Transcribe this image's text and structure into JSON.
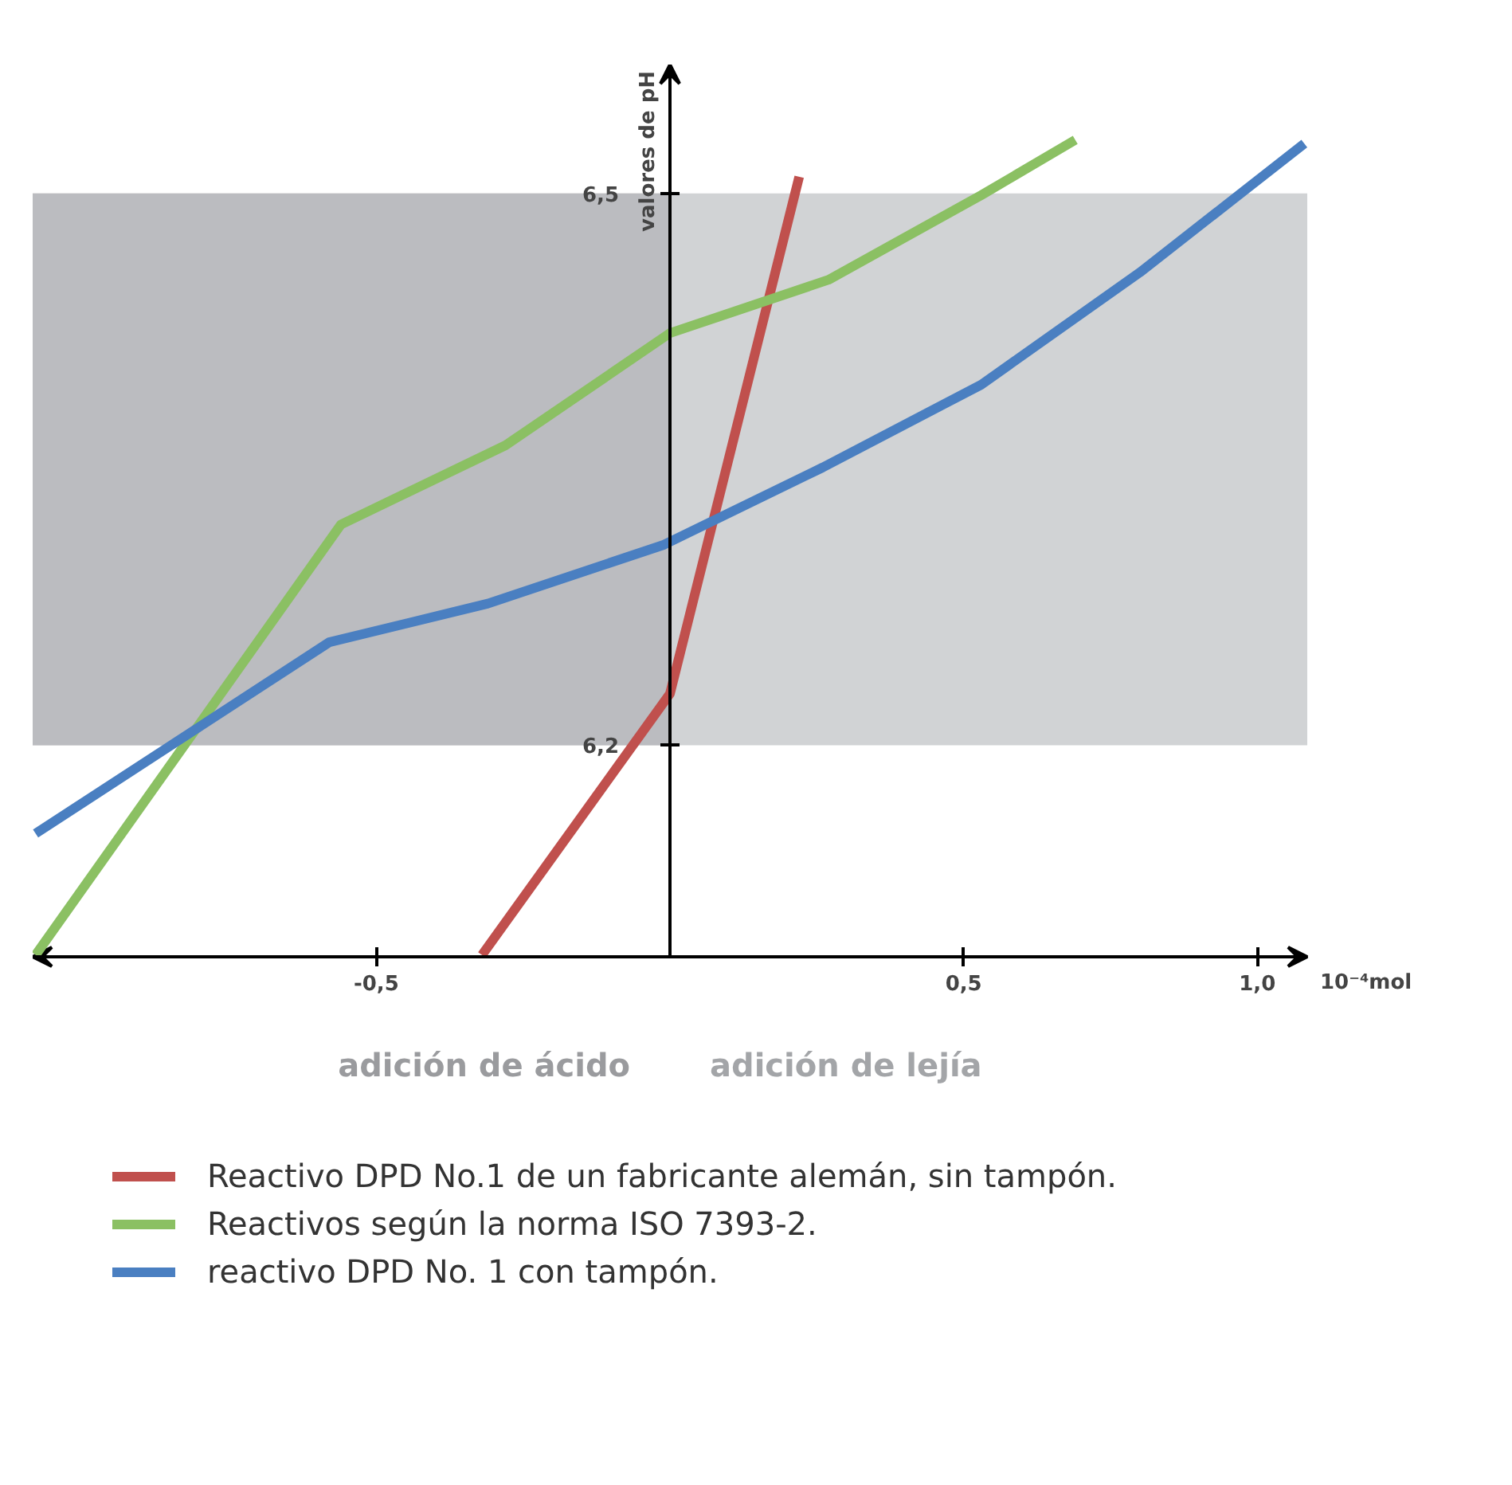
{
  "chart_data": {
    "type": "line",
    "xlabel": "10⁻⁴mol",
    "ylabel": "valores de pH",
    "xlim": [
      -1.085,
      1.085
    ],
    "ylim": [
      6.085,
      6.57
    ],
    "xticks": [
      {
        "value": -0.5,
        "label": "-0,5"
      },
      {
        "value": 0.5,
        "label": "0,5"
      },
      {
        "value": 1.0,
        "label": "1,0"
      }
    ],
    "yticks": [
      {
        "value": 6.2,
        "label": "6,2"
      },
      {
        "value": 6.5,
        "label": "6,5"
      }
    ],
    "bands": [
      {
        "axis": "y",
        "from": 6.2,
        "to": 6.5,
        "color": "#d1d3d5"
      },
      {
        "axis": "x",
        "from": -1.085,
        "to": 0,
        "color": "#bbbcc0"
      }
    ],
    "annotations": [
      "adición de ácido",
      "adición de lejía"
    ],
    "series": [
      {
        "name": "Reactivo DPD No.1 de un fabricante alemán, sin tampón.",
        "color": "#c0504d",
        "x": [
          -0.32,
          0,
          0.22
        ],
        "values": [
          6.086,
          6.228,
          6.509
        ]
      },
      {
        "name": "Reactivos según la norma ISO 7393-2.",
        "color": "#8bc063",
        "x": [
          -1.08,
          -0.56,
          -0.28,
          0,
          0.27,
          0.53,
          0.69
        ],
        "values": [
          6.086,
          6.32,
          6.363,
          6.424,
          6.453,
          6.499,
          6.529
        ]
      },
      {
        "name": "reactivo DPD No. 1 con tampón.",
        "color": "#4a7fc1",
        "x": [
          -1.08,
          -0.58,
          -0.31,
          -0.01,
          0.26,
          0.53,
          0.8,
          1.08
        ],
        "values": [
          6.152,
          6.256,
          6.277,
          6.309,
          6.351,
          6.396,
          6.457,
          6.527
        ]
      }
    ],
    "legend": "bottom",
    "grid": false,
    "line_style": "solid",
    "marker": "none"
  }
}
